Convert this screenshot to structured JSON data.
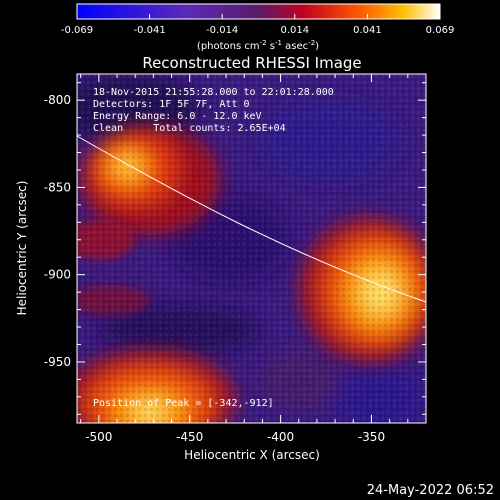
{
  "colorbar": {
    "ticks": [
      "-0.069",
      "-0.041",
      "-0.014",
      "0.014",
      "0.041",
      "0.069"
    ],
    "unit_prefix": "(photons cm",
    "unit_exp1": "-2",
    "unit_mid": " s",
    "unit_exp2": "-1",
    "unit_mid2": " asec",
    "unit_exp3": "-2",
    "unit_suffix": ")"
  },
  "title": "Reconstructed RHESSI Image",
  "annotations": {
    "time": "18-Nov-2015 21:55:28.000 to 22:01:28.000",
    "detectors": "Detectors: 1F 5F 7F, Att 0",
    "energy": "Energy Range: 6.0 - 12.0 keV",
    "method": "Clean     Total counts: 2.65E+04",
    "peak": "Position of Peak = [-342,-912]"
  },
  "axes": {
    "xlabel": "Heliocentric X (arcsec)",
    "ylabel": "Heliocentric Y (arcsec)",
    "xticks": [
      "-500",
      "-450",
      "-400",
      "-350"
    ],
    "yticks": [
      "-800",
      "-850",
      "-900",
      "-950"
    ],
    "xlim": [
      -512,
      -320
    ],
    "ylim": [
      -985,
      -785
    ]
  },
  "footer": {
    "date": "24-May-2022 06:52"
  },
  "colors": {
    "frame": "#ffffff",
    "background": "#000000",
    "hot": "#ffd000",
    "cool": "#3a1a8a"
  }
}
